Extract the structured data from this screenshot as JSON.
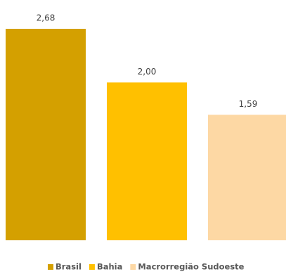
{
  "chart_data": {
    "type": "bar",
    "categories": [
      null
    ],
    "series": [
      {
        "name": "Brasil",
        "color": "#d4a000",
        "values": [
          2.68
        ],
        "value_labels": [
          "2,68"
        ]
      },
      {
        "name": "Bahia",
        "color": "#ffc000",
        "values": [
          2.0
        ],
        "value_labels": [
          "2,00"
        ]
      },
      {
        "name": "Macrorregião Sudoeste",
        "color": "#fdd8a4",
        "values": [
          1.59
        ],
        "value_labels": [
          "1,59"
        ]
      }
    ],
    "legend": "bottom"
  }
}
